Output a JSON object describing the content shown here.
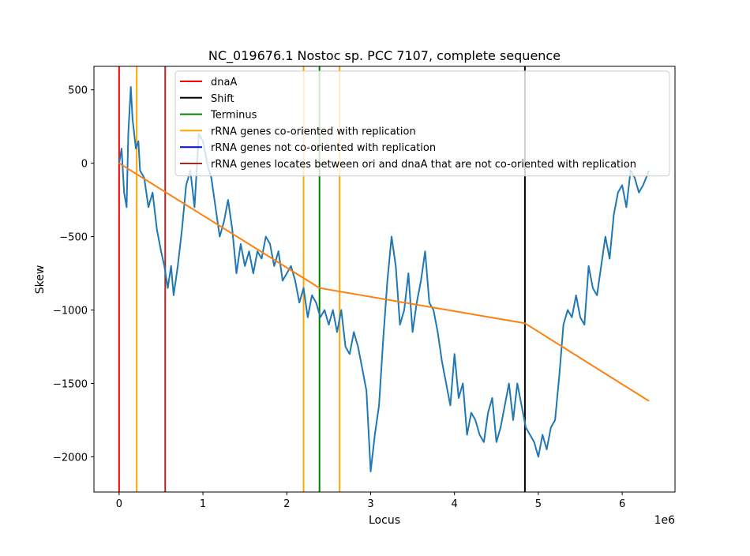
{
  "chart_data": {
    "type": "line",
    "title": "NC_019676.1 Nostoc sp. PCC 7107, complete sequence",
    "xlabel": "Locus",
    "ylabel": "Skew",
    "x_offset_label": "1e6",
    "xlim": [
      -300000,
      6630000
    ],
    "ylim": [
      -2240,
      660
    ],
    "x_ticks": [
      0,
      1000000,
      2000000,
      3000000,
      4000000,
      5000000,
      6000000
    ],
    "x_tick_labels": [
      "0",
      "1",
      "2",
      "3",
      "4",
      "5",
      "6"
    ],
    "y_ticks": [
      -2000,
      -1500,
      -1000,
      -500,
      0,
      500
    ],
    "y_tick_labels": [
      "−2000",
      "−1500",
      "−1000",
      "−500",
      "0",
      "500"
    ],
    "grid": false,
    "legend_position": "upper right",
    "legend": [
      {
        "label": "dnaA",
        "color": "#ff0000"
      },
      {
        "label": "Shift",
        "color": "#000000"
      },
      {
        "label": "Terminus",
        "color": "#008000"
      },
      {
        "label": "rRNA genes co-oriented with replication",
        "color": "#ffa500"
      },
      {
        "label": "rRNA genes not co-oriented with replication",
        "color": "#0000ff"
      },
      {
        "label": "rRNA genes locates between ori and dnaA that are not co-oriented with replication",
        "color": "#a52a2a"
      }
    ],
    "vertical_lines": [
      {
        "series": "dnaA",
        "x": 0,
        "color": "#ff0000"
      },
      {
        "series": "rRNA genes co-oriented with replication",
        "x": 210000,
        "color": "#ffa500"
      },
      {
        "series": "rRNA genes locates between ori and dnaA that are not co-oriented with replication",
        "x": 550000,
        "color": "#a52a2a"
      },
      {
        "series": "rRNA genes co-oriented with replication",
        "x": 2200000,
        "color": "#ffa500"
      },
      {
        "series": "Terminus",
        "x": 2390000,
        "color": "#008000"
      },
      {
        "series": "rRNA genes co-oriented with replication",
        "x": 2630000,
        "color": "#ffa500"
      },
      {
        "series": "Shift",
        "x": 4840000,
        "color": "#000000"
      }
    ],
    "series": [
      {
        "color": "#1f77b4",
        "x": [
          0,
          30000,
          60000,
          90000,
          110000,
          140000,
          160000,
          200000,
          230000,
          250000,
          300000,
          350000,
          400000,
          450000,
          500000,
          540000,
          580000,
          620000,
          650000,
          700000,
          750000,
          800000,
          850000,
          900000,
          950000,
          1000000,
          1050000,
          1100000,
          1150000,
          1200000,
          1250000,
          1300000,
          1350000,
          1400000,
          1450000,
          1500000,
          1550000,
          1600000,
          1650000,
          1700000,
          1750000,
          1800000,
          1850000,
          1900000,
          1950000,
          2000000,
          2050000,
          2100000,
          2150000,
          2200000,
          2250000,
          2300000,
          2350000,
          2400000,
          2450000,
          2500000,
          2550000,
          2600000,
          2650000,
          2700000,
          2750000,
          2800000,
          2850000,
          2900000,
          2950000,
          3000000,
          3050000,
          3100000,
          3150000,
          3200000,
          3250000,
          3300000,
          3350000,
          3400000,
          3450000,
          3500000,
          3550000,
          3600000,
          3650000,
          3700000,
          3750000,
          3800000,
          3850000,
          3900000,
          3950000,
          4000000,
          4050000,
          4100000,
          4150000,
          4200000,
          4250000,
          4300000,
          4350000,
          4400000,
          4450000,
          4500000,
          4550000,
          4600000,
          4650000,
          4700000,
          4750000,
          4800000,
          4850000,
          4900000,
          4950000,
          5000000,
          5050000,
          5100000,
          5150000,
          5200000,
          5250000,
          5300000,
          5350000,
          5400000,
          5450000,
          5500000,
          5550000,
          5600000,
          5650000,
          5700000,
          5750000,
          5800000,
          5850000,
          5900000,
          5950000,
          6000000,
          6050000,
          6100000,
          6150000,
          6200000,
          6250000,
          6320000
        ],
        "y": [
          0,
          100,
          -200,
          -300,
          200,
          520,
          300,
          100,
          150,
          -50,
          -100,
          -300,
          -200,
          -450,
          -600,
          -700,
          -850,
          -700,
          -900,
          -700,
          -450,
          -150,
          -50,
          -300,
          200,
          150,
          0,
          -100,
          -300,
          -500,
          -400,
          -250,
          -450,
          -750,
          -550,
          -700,
          -600,
          -750,
          -600,
          -650,
          -500,
          -550,
          -700,
          -600,
          -800,
          -750,
          -700,
          -800,
          -950,
          -850,
          -1050,
          -900,
          -950,
          -1050,
          -1000,
          -1100,
          -1000,
          -1150,
          -1000,
          -1250,
          -1300,
          -1150,
          -1250,
          -1400,
          -1550,
          -2100,
          -1850,
          -1650,
          -1200,
          -800,
          -500,
          -700,
          -1100,
          -1000,
          -750,
          -1150,
          -950,
          -800,
          -600,
          -950,
          -1000,
          -1150,
          -1350,
          -1500,
          -1650,
          -1300,
          -1600,
          -1500,
          -1850,
          -1700,
          -1750,
          -1850,
          -1900,
          -1700,
          -1600,
          -1900,
          -1800,
          -1650,
          -1500,
          -1750,
          -1500,
          -1650,
          -1800,
          -1850,
          -1900,
          -2000,
          -1850,
          -1950,
          -1800,
          -1750,
          -1450,
          -1100,
          -1000,
          -1050,
          -900,
          -1050,
          -1100,
          -700,
          -850,
          -900,
          -700,
          -500,
          -650,
          -350,
          -200,
          -150,
          -300,
          -50,
          -100,
          -200,
          -150,
          -50
        ]
      },
      {
        "color": "#ff7f0e",
        "x": [
          0,
          2390000,
          4840000,
          6320000
        ],
        "y": [
          0,
          -850,
          -1090,
          -1620
        ]
      }
    ]
  }
}
